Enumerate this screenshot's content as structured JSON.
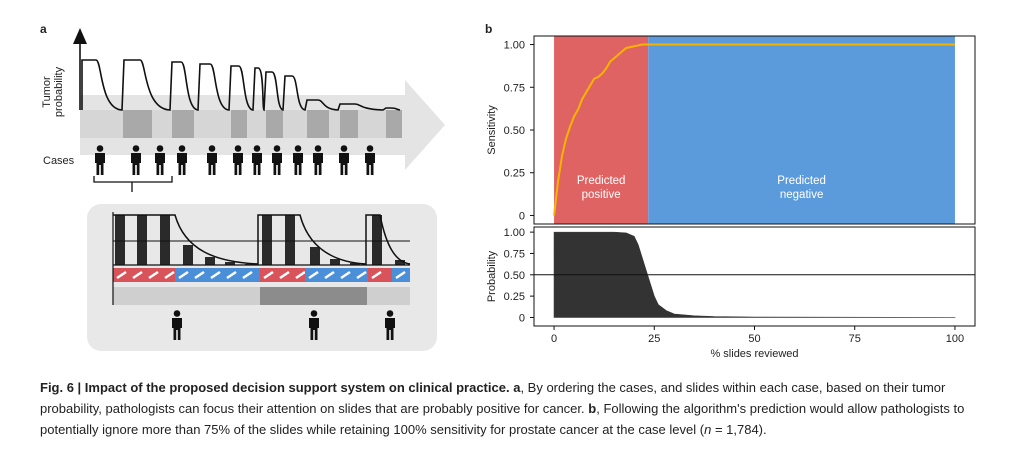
{
  "panel_a": {
    "label": "a",
    "y_label_lines": [
      "Tumor",
      "probability"
    ],
    "cases_label": "Cases"
  },
  "panel_b_label": "b",
  "chart_data": [
    {
      "type": "line",
      "y_label": "Sensitivity",
      "xlim": [
        -5,
        105
      ],
      "ylim": [
        -0.05,
        1.05
      ],
      "yticks": [
        {
          "value": 1,
          "label": "1.00"
        },
        {
          "value": 0.75,
          "label": "0.75"
        },
        {
          "value": 0.5,
          "label": "0.50"
        },
        {
          "value": 0.25,
          "label": "0.25"
        },
        0
      ],
      "regions": [
        {
          "label_lines": [
            "Predicted",
            "positive"
          ],
          "x": [
            0,
            23.5
          ],
          "color": "#e06363"
        },
        {
          "label_lines": [
            "Predicted",
            "negative"
          ],
          "x": [
            23.5,
            100
          ],
          "color": "#5b9bdb"
        }
      ],
      "x": [
        0,
        0.5,
        1,
        2,
        3,
        4,
        5,
        6,
        7,
        8,
        9,
        10,
        11,
        12,
        13,
        14,
        15,
        16,
        17,
        18,
        20,
        22,
        23.5,
        100
      ],
      "values": [
        0,
        0.1,
        0.2,
        0.35,
        0.45,
        0.52,
        0.58,
        0.62,
        0.68,
        0.72,
        0.76,
        0.8,
        0.81,
        0.83,
        0.86,
        0.9,
        0.92,
        0.94,
        0.96,
        0.98,
        0.99,
        1,
        1,
        1
      ],
      "color": "#f5b400"
    },
    {
      "type": "area",
      "y_label": "Probability",
      "x_label": "% slides reviewed",
      "xlim": [
        -5,
        105
      ],
      "ylim": [
        -0.1,
        1.06
      ],
      "xticks": [
        0,
        25,
        50,
        75,
        100
      ],
      "yticks": [
        {
          "value": 1,
          "label": "1.00"
        },
        {
          "value": 0.75,
          "label": "0.75"
        },
        {
          "value": 0.5,
          "label": "0.50"
        },
        {
          "value": 0.25,
          "label": "0.25"
        },
        0
      ],
      "threshold": 0.5,
      "x": [
        0,
        5,
        10,
        15,
        18,
        20,
        21,
        22,
        23,
        24,
        25,
        26,
        28,
        30,
        35,
        40,
        50,
        100
      ],
      "values": [
        1,
        1,
        1,
        1,
        0.99,
        0.95,
        0.85,
        0.7,
        0.55,
        0.4,
        0.25,
        0.15,
        0.08,
        0.04,
        0.02,
        0.01,
        0.005,
        0
      ],
      "color": "#333333"
    }
  ],
  "caption": {
    "parts": [
      {
        "text": "Fig. 6 | Impact of the proposed decision support system on clinical practice.",
        "style": "bold"
      },
      {
        "text": "a",
        "style": "bold"
      },
      {
        "text": ", By ordering the cases, and slides within each case, based on their tumor probability, pathologists can focus their attention on slides that are probably positive for cancer.",
        "style": "normal"
      },
      {
        "text": "b",
        "style": "bold"
      },
      {
        "text": ", Following the algorithm's prediction would allow pathologists to potentially ignore more than 75% of the slides while retaining 100% sensitivity for prostate cancer at the case level (",
        "style": "normal"
      },
      {
        "text": "n",
        "style": "italic"
      },
      {
        "text": " = 1,784).",
        "style": "normal"
      }
    ]
  }
}
